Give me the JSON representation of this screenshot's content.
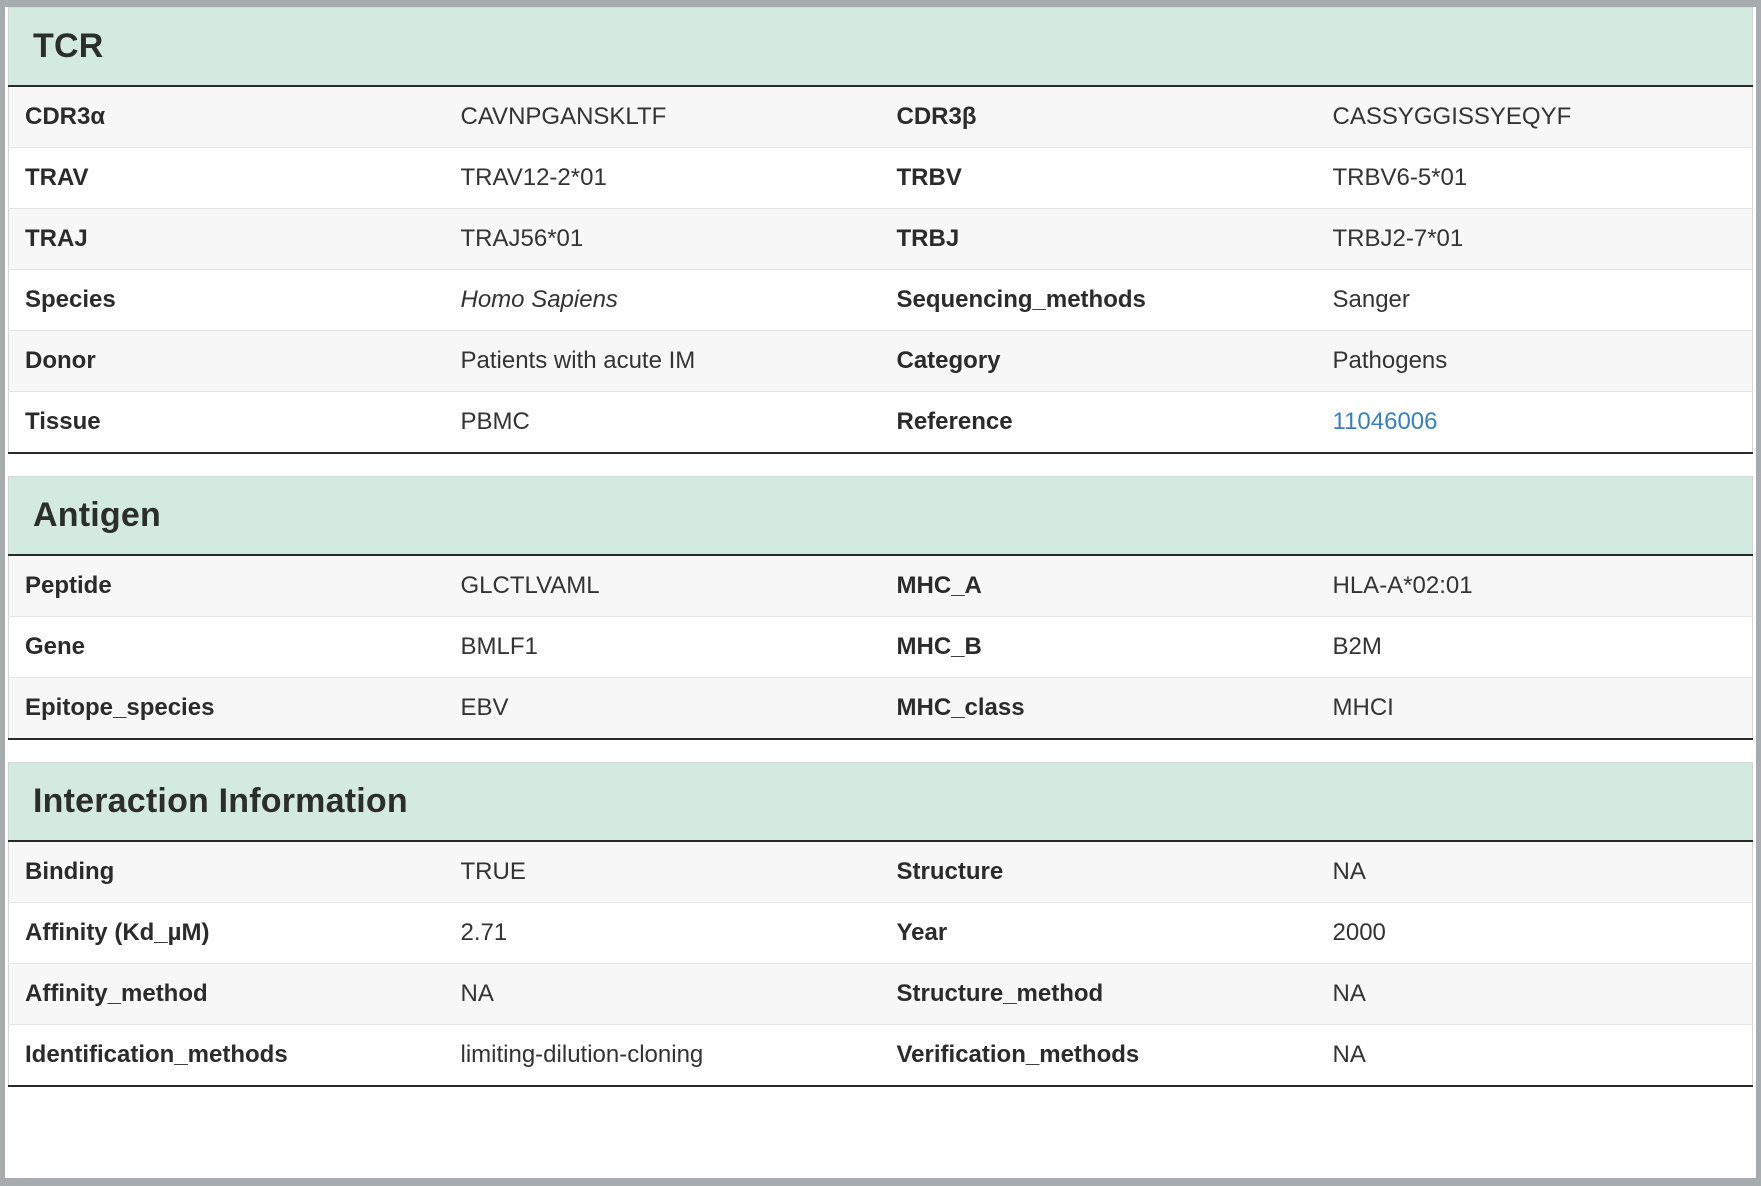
{
  "colors": {
    "section_header_bg": "#d3eae0",
    "link": "#3580c4",
    "frame": "#a6abae",
    "stripe": "#f7f7f7",
    "rule_dark": "#2a2a2a"
  },
  "sections": [
    {
      "title": "TCR",
      "rows": [
        [
          {
            "label": "CDR3α",
            "value": "CAVNPGANSKLTF"
          },
          {
            "label": "CDR3β",
            "value": "CASSYGGISSYEQYF"
          }
        ],
        [
          {
            "label": "TRAV",
            "value": "TRAV12-2*01"
          },
          {
            "label": "TRBV",
            "value": "TRBV6-5*01"
          }
        ],
        [
          {
            "label": "TRAJ",
            "value": "TRAJ56*01"
          },
          {
            "label": "TRBJ",
            "value": "TRBJ2-7*01"
          }
        ],
        [
          {
            "label": "Species",
            "value": "Homo Sapiens"
          },
          {
            "label": "Sequencing_methods",
            "value": "Sanger"
          }
        ],
        [
          {
            "label": "Donor",
            "value": "Patients with acute IM"
          },
          {
            "label": "Category",
            "value": "Pathogens"
          }
        ],
        [
          {
            "label": "Tissue",
            "value": "PBMC"
          },
          {
            "label": "Reference",
            "value": "11046006"
          }
        ]
      ]
    },
    {
      "title": "Antigen",
      "rows": [
        [
          {
            "label": "Peptide",
            "value": "GLCTLVAML"
          },
          {
            "label": "MHC_A",
            "value": "HLA-A*02:01"
          }
        ],
        [
          {
            "label": "Gene",
            "value": "BMLF1"
          },
          {
            "label": "MHC_B",
            "value": "B2M"
          }
        ],
        [
          {
            "label": "Epitope_species",
            "value": "EBV"
          },
          {
            "label": "MHC_class",
            "value": "MHCI"
          }
        ]
      ]
    },
    {
      "title": "Interaction Information",
      "rows": [
        [
          {
            "label": "Binding",
            "value": "TRUE"
          },
          {
            "label": "Structure",
            "value": "NA"
          }
        ],
        [
          {
            "label": "Affinity (Kd_µM)",
            "value": "2.71"
          },
          {
            "label": "Year",
            "value": "2000"
          }
        ],
        [
          {
            "label": "Affinity_method",
            "value": "NA"
          },
          {
            "label": "Structure_method",
            "value": "NA"
          }
        ],
        [
          {
            "label": "Identification_methods",
            "value": "limiting-dilution-cloning"
          },
          {
            "label": "Verification_methods",
            "value": "NA"
          }
        ]
      ]
    }
  ]
}
